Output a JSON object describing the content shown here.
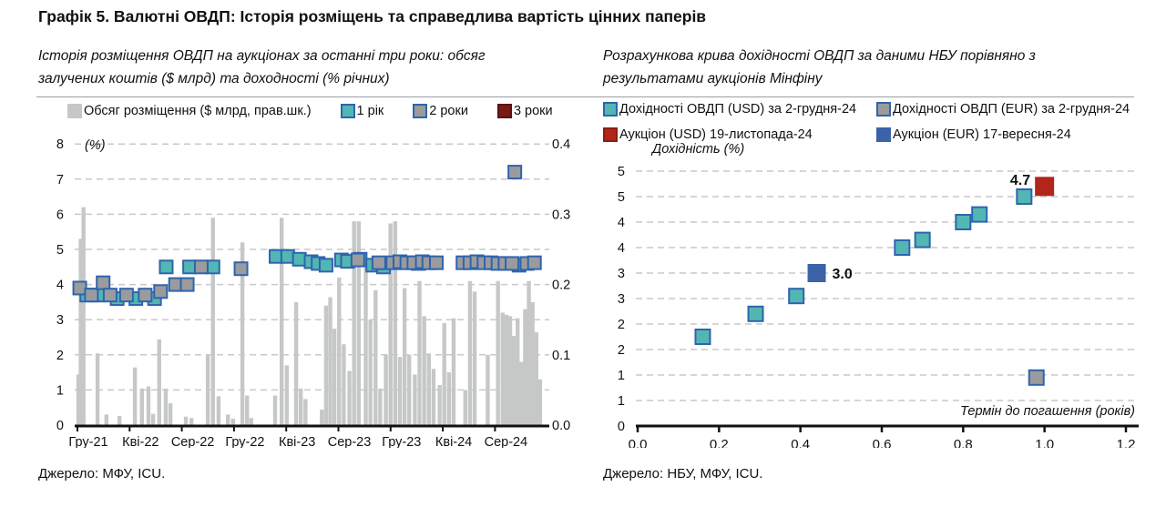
{
  "title": "Графік 5. Валютні ОВДП: Історія розміщень та справедлива вартість цінних паперів",
  "left_panel": {
    "subtitle": "Історія розміщення ОВДП на аукціонах за останні три роки: обсяг залучених коштів ($ млрд) та доходності (% річних)",
    "source": "Джерело: МФУ, ICU.",
    "legend": [
      {
        "label": "Обсяг розміщення ($ млрд, прав.шк.)",
        "swatch": "#c6c8c8",
        "border": "#c6c8c8"
      },
      {
        "label": "1 рік",
        "swatch": "#52b7b3",
        "border": "#2f64ae"
      },
      {
        "label": "2 роки",
        "swatch": "#9b9b9d",
        "border": "#2f64ae"
      },
      {
        "label": "3 роки",
        "swatch": "#7a1913",
        "border": "#5a120e"
      }
    ]
  },
  "right_panel": {
    "subtitle": "Розрахункова крива дохідності ОВДП за даними НБУ порівняно з результатами аукціонів Мінфіну",
    "source": "Джерело: НБУ, МФУ, ICU.",
    "legend": [
      {
        "label": "Дохідності ОВДП (USD) за 2-грудня-24",
        "swatch": "#52b7b3",
        "border": "#2f64ae"
      },
      {
        "label": "Дохідності ОВДП (EUR) за 2-грудня-24",
        "swatch": "#9b9b9d",
        "border": "#2f64ae"
      },
      {
        "label": "Аукціон (USD) 19-листопада-24",
        "swatch": "#b1251a",
        "border": "#8c1d12"
      },
      {
        "label": "Аукціон (EUR) 17-вересня-24",
        "swatch": "#3c63a8",
        "border": "#3c63a8"
      }
    ]
  },
  "colors": {
    "bar": "#c6c8c8",
    "teal": "#52b7b3",
    "gray_marker": "#9b9b9d",
    "marker_border": "#2f64ae",
    "dark_red": "#7a1913",
    "auction_red": "#b1251a",
    "auction_blue": "#3c63a8",
    "gridline": "#c9c9c9",
    "axis": "#111111"
  },
  "chart_data": [
    {
      "type": "bar",
      "title": "Історія розміщення ОВДП на аукціонах за останні три роки",
      "grid": "dashed horizontal",
      "inner_label": "(%)",
      "x_axis": {
        "tick_labels": [
          "Гру-21",
          "Кві-22",
          "Сер-22",
          "Гру-22",
          "Кві-23",
          "Сер-23",
          "Гру-23",
          "Кві-24",
          "Сер-24"
        ],
        "note": "x positions of points/bars are normalized 0..1 across Гру-21 — Лис-24"
      },
      "y_left": {
        "label": "(%)",
        "range": [
          0,
          8
        ],
        "ticks": [
          0,
          1,
          2,
          3,
          4,
          5,
          6,
          7,
          8
        ]
      },
      "y_right": {
        "range": [
          0,
          0.4
        ],
        "tick_labels": [
          "0.0",
          "0.1",
          "0.2",
          "0.3",
          "0.4"
        ]
      },
      "bars": {
        "name": "Обсяг розміщення ($ млрд, прав.шк.)",
        "axis": "right",
        "points": [
          [
            0.002,
            0.072
          ],
          [
            0.007,
            0.265
          ],
          [
            0.013,
            0.31
          ],
          [
            0.043,
            0.102
          ],
          [
            0.062,
            0.015
          ],
          [
            0.09,
            0.013
          ],
          [
            0.123,
            0.082
          ],
          [
            0.138,
            0.052
          ],
          [
            0.152,
            0.055
          ],
          [
            0.162,
            0.016
          ],
          [
            0.175,
            0.122
          ],
          [
            0.189,
            0.052
          ],
          [
            0.199,
            0.031
          ],
          [
            0.232,
            0.012
          ],
          [
            0.244,
            0.01
          ],
          [
            0.279,
            0.1
          ],
          [
            0.29,
            0.295
          ],
          [
            0.302,
            0.041
          ],
          [
            0.322,
            0.015
          ],
          [
            0.333,
            0.009
          ],
          [
            0.353,
            0.26
          ],
          [
            0.363,
            0.042
          ],
          [
            0.372,
            0.01
          ],
          [
            0.423,
            0.042
          ],
          [
            0.437,
            0.295
          ],
          [
            0.448,
            0.085
          ],
          [
            0.468,
            0.175
          ],
          [
            0.478,
            0.052
          ],
          [
            0.488,
            0.037
          ],
          [
            0.523,
            0.022
          ],
          [
            0.532,
            0.17
          ],
          [
            0.541,
            0.182
          ],
          [
            0.55,
            0.137
          ],
          [
            0.56,
            0.21
          ],
          [
            0.57,
            0.115
          ],
          [
            0.582,
            0.077
          ],
          [
            0.592,
            0.29
          ],
          [
            0.602,
            0.29
          ],
          [
            0.617,
            0.232
          ],
          [
            0.627,
            0.15
          ],
          [
            0.638,
            0.192
          ],
          [
            0.648,
            0.052
          ],
          [
            0.66,
            0.1
          ],
          [
            0.67,
            0.287
          ],
          [
            0.68,
            0.29
          ],
          [
            0.69,
            0.097
          ],
          [
            0.7,
            0.195
          ],
          [
            0.71,
            0.1
          ],
          [
            0.722,
            0.072
          ],
          [
            0.732,
            0.205
          ],
          [
            0.742,
            0.155
          ],
          [
            0.752,
            0.102
          ],
          [
            0.762,
            0.08
          ],
          [
            0.775,
            0.057
          ],
          [
            0.785,
            0.145
          ],
          [
            0.795,
            0.075
          ],
          [
            0.805,
            0.152
          ],
          [
            0.83,
            0.05
          ],
          [
            0.84,
            0.205
          ],
          [
            0.85,
            0.19
          ],
          [
            0.878,
            0.1
          ],
          [
            0.9,
            0.205
          ],
          [
            0.91,
            0.16
          ],
          [
            0.918,
            0.157
          ],
          [
            0.926,
            0.155
          ],
          [
            0.934,
            0.127
          ],
          [
            0.942,
            0.152
          ],
          [
            0.95,
            0.09
          ],
          [
            0.958,
            0.165
          ],
          [
            0.966,
            0.205
          ],
          [
            0.974,
            0.175
          ],
          [
            0.982,
            0.132
          ],
          [
            0.99,
            0.065
          ]
        ]
      },
      "series": [
        {
          "name": "1 рік",
          "axis": "left",
          "color": "#52b7b3",
          "points": [
            [
              0.02,
              3.7
            ],
            [
              0.045,
              3.7
            ],
            [
              0.085,
              3.6
            ],
            [
              0.125,
              3.6
            ],
            [
              0.165,
              3.6
            ],
            [
              0.19,
              4.5
            ],
            [
              0.24,
              4.5
            ],
            [
              0.29,
              4.5
            ],
            [
              0.425,
              4.8
            ],
            [
              0.45,
              4.8
            ],
            [
              0.475,
              4.72
            ],
            [
              0.5,
              4.65
            ],
            [
              0.515,
              4.6
            ],
            [
              0.532,
              4.55
            ],
            [
              0.565,
              4.7
            ],
            [
              0.578,
              4.66
            ],
            [
              0.605,
              4.72
            ],
            [
              0.632,
              4.55
            ],
            [
              0.655,
              4.5
            ],
            [
              0.73,
              4.6
            ],
            [
              0.945,
              4.55
            ]
          ]
        },
        {
          "name": "2 роки",
          "axis": "left",
          "color": "#9b9b9d",
          "points": [
            [
              0.005,
              3.9
            ],
            [
              0.03,
              3.7
            ],
            [
              0.055,
              4.05
            ],
            [
              0.07,
              3.7
            ],
            [
              0.105,
              3.7
            ],
            [
              0.145,
              3.7
            ],
            [
              0.178,
              3.8
            ],
            [
              0.21,
              4.0
            ],
            [
              0.235,
              4.0
            ],
            [
              0.265,
              4.5
            ],
            [
              0.35,
              4.45
            ],
            [
              0.6,
              4.7
            ],
            [
              0.645,
              4.62
            ],
            [
              0.675,
              4.62
            ],
            [
              0.69,
              4.65
            ],
            [
              0.705,
              4.62
            ],
            [
              0.72,
              4.62
            ],
            [
              0.738,
              4.65
            ],
            [
              0.752,
              4.62
            ],
            [
              0.768,
              4.62
            ],
            [
              0.825,
              4.62
            ],
            [
              0.84,
              4.62
            ],
            [
              0.855,
              4.65
            ],
            [
              0.87,
              4.62
            ],
            [
              0.885,
              4.62
            ],
            [
              0.9,
              4.6
            ],
            [
              0.915,
              4.6
            ],
            [
              0.93,
              4.6
            ],
            [
              0.936,
              7.2
            ],
            [
              0.962,
              4.6
            ],
            [
              0.978,
              4.62
            ]
          ]
        },
        {
          "name": "3 роки",
          "axis": "left",
          "color": "#7a1913",
          "points": []
        }
      ]
    },
    {
      "type": "scatter",
      "title": "Розрахункова крива дохідності ОВДП",
      "grid": "dashed horizontal",
      "x_axis": {
        "label": "Термін до погашення (років)",
        "range": [
          0,
          1.2
        ],
        "tick_labels": [
          "0.0",
          "0.2",
          "0.4",
          "0.6",
          "0.8",
          "1.0",
          "1.2"
        ]
      },
      "y_axis": {
        "label": "Дохідність (%)",
        "range": [
          0,
          5
        ],
        "tick_step": 0.5,
        "tick_labels_bottom_up": [
          "0",
          "1",
          "1",
          "2",
          "2",
          "3",
          "3",
          "4",
          "4",
          "5",
          "5"
        ]
      },
      "series": [
        {
          "name": "Дохідності ОВДП (USD) за 2-грудня-24",
          "color": "#52b7b3",
          "border": "#2f64ae",
          "size": 16,
          "points": [
            [
              0.16,
              1.75
            ],
            [
              0.29,
              2.2
            ],
            [
              0.39,
              2.55
            ],
            [
              0.65,
              3.5
            ],
            [
              0.7,
              3.65
            ],
            [
              0.8,
              4.0
            ],
            [
              0.84,
              4.15
            ],
            [
              0.95,
              4.5
            ]
          ]
        },
        {
          "name": "Дохідності ОВДП (EUR) за 2-грудня-24",
          "color": "#9b9b9d",
          "border": "#2f64ae",
          "size": 16,
          "points": [
            [
              0.98,
              0.95
            ]
          ]
        },
        {
          "name": "Аукціон (EUR) 17-вересня-24",
          "color": "#3c63a8",
          "border": "#3c63a8",
          "size": 18,
          "points": [
            [
              0.44,
              3.0
            ]
          ],
          "annotation": "3.0",
          "annotation_side": "right"
        },
        {
          "name": "Аукціон (USD) 19-листопада-24",
          "color": "#b1251a",
          "border": "#b1251a",
          "size": 19,
          "points": [
            [
              1.0,
              4.7
            ]
          ],
          "annotation": "4.7",
          "annotation_side": "left"
        }
      ]
    }
  ]
}
